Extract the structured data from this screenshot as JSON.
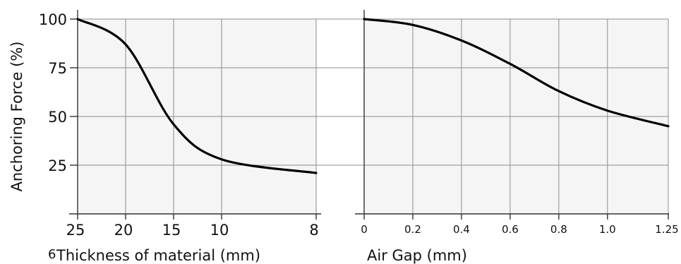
{
  "chart_data": [
    {
      "type": "line",
      "title": "",
      "xlabel": "Thickness of material (mm)",
      "ylabel": "Anchoring Force (%)",
      "x_ticks": [
        "25",
        "20",
        "15",
        "10",
        "8"
      ],
      "y_ticks": [
        "100",
        "75",
        "50",
        "25"
      ],
      "y_tick_values": [
        100,
        75,
        50,
        25
      ],
      "ylim": [
        0,
        100
      ],
      "x": [
        "25",
        "20",
        "15",
        "10",
        "8"
      ],
      "y": [
        100,
        87,
        46,
        28,
        21
      ],
      "grid": true,
      "stray_label": "6"
    },
    {
      "type": "line",
      "title": "",
      "xlabel": "Air Gap (mm)",
      "ylabel": "",
      "x_ticks": [
        "0",
        "0.2",
        "0.4",
        "0.6",
        "0.8",
        "1.0",
        "1.25"
      ],
      "ylim": [
        0,
        100
      ],
      "x": [
        0,
        0.2,
        0.4,
        0.6,
        0.8,
        1.0,
        1.25
      ],
      "y": [
        100,
        97,
        89,
        77,
        63,
        53,
        45
      ],
      "grid": true
    }
  ]
}
